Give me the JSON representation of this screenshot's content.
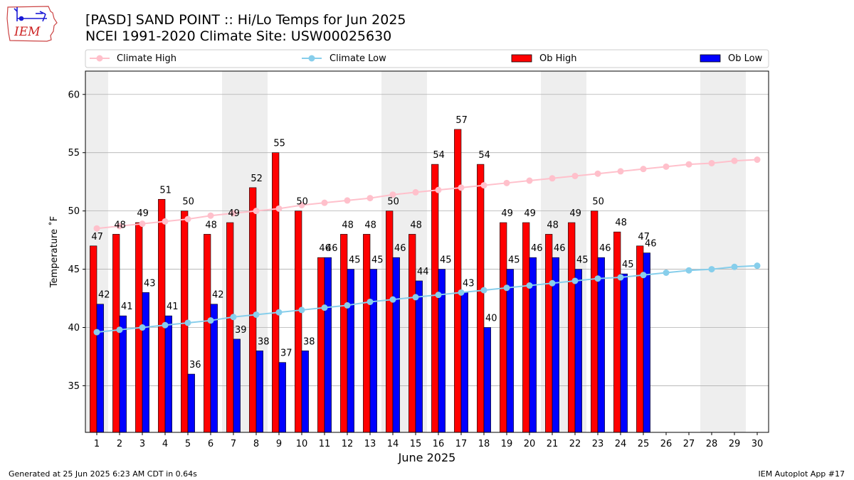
{
  "header": {
    "title_line1": "[PASD] SAND POINT :: Hi/Lo Temps for Jun 2025",
    "title_line2": "NCEI 1991-2020 Climate Site: USW00025630"
  },
  "logo": {
    "text": "IEM",
    "icon": "iowa-state-weather-logo"
  },
  "footer": {
    "generated": "Generated at 25 Jun 2025 6:23 AM CDT in 0.64s",
    "app": "IEM Autoplot App #17"
  },
  "colors": {
    "ob_high": "#ff0000",
    "ob_low": "#0000ff",
    "climate_high": "#ffc0cb",
    "climate_low": "#87ceeb",
    "weekend_band": "#eeeeee",
    "grid": "#b0b0b0"
  },
  "chart_data": {
    "type": "bar",
    "xlabel": "June 2025",
    "ylabel": "Temperature ˚F",
    "ylim": [
      31,
      62
    ],
    "yticks": [
      35,
      40,
      45,
      50,
      55,
      60
    ],
    "grid": "horizontal",
    "legend_placement": "top",
    "categories": [
      "1",
      "2",
      "3",
      "4",
      "5",
      "6",
      "7",
      "8",
      "9",
      "10",
      "11",
      "12",
      "13",
      "14",
      "15",
      "16",
      "17",
      "18",
      "19",
      "20",
      "21",
      "22",
      "23",
      "24",
      "25",
      "26",
      "27",
      "28",
      "29",
      "30"
    ],
    "weekend_days": [
      1,
      7,
      8,
      14,
      15,
      21,
      22,
      28,
      29
    ],
    "series": [
      {
        "name": "Ob High",
        "kind": "bar",
        "values": [
          47,
          48,
          49,
          51,
          50,
          48,
          49,
          52,
          55,
          50,
          46,
          48,
          48,
          50,
          48,
          54,
          57,
          54,
          49,
          49,
          48,
          49,
          50,
          48.2,
          47,
          null,
          null,
          null,
          null,
          null
        ],
        "labels": [
          "47",
          "48",
          "49",
          "51",
          "50",
          "48",
          "49",
          "52",
          "55",
          "50",
          "46",
          "48",
          "48",
          "50",
          "48",
          "54",
          "57",
          "54",
          "49",
          "49",
          "48",
          "49",
          "50",
          "48",
          "47",
          "",
          "",
          "",
          "",
          ""
        ]
      },
      {
        "name": "Ob Low",
        "kind": "bar",
        "values": [
          42,
          41,
          43,
          41,
          36,
          42,
          39,
          38,
          37,
          38,
          46,
          45,
          45,
          46,
          44,
          45,
          43,
          40,
          45,
          46,
          46,
          45,
          46,
          44.6,
          46.4,
          null,
          null,
          null,
          null,
          null
        ],
        "labels": [
          "42",
          "41",
          "43",
          "41",
          "36",
          "42",
          "39",
          "38",
          "37",
          "38",
          "46",
          "45",
          "45",
          "46",
          "44",
          "45",
          "43",
          "40",
          "45",
          "46",
          "46",
          "45",
          "46",
          "45",
          "46",
          "",
          "",
          "",
          "",
          ""
        ]
      },
      {
        "name": "Climate High",
        "kind": "line",
        "values": [
          48.5,
          48.7,
          48.9,
          49.1,
          49.3,
          49.6,
          49.8,
          50.0,
          50.2,
          50.5,
          50.7,
          50.9,
          51.1,
          51.4,
          51.6,
          51.8,
          52.0,
          52.2,
          52.4,
          52.6,
          52.8,
          53.0,
          53.2,
          53.4,
          53.6,
          53.8,
          54.0,
          54.1,
          54.3,
          54.4
        ]
      },
      {
        "name": "Climate Low",
        "kind": "line",
        "values": [
          39.6,
          39.8,
          40.0,
          40.2,
          40.4,
          40.6,
          40.9,
          41.1,
          41.3,
          41.5,
          41.7,
          41.9,
          42.2,
          42.4,
          42.6,
          42.8,
          43.0,
          43.2,
          43.4,
          43.6,
          43.8,
          44.0,
          44.2,
          44.3,
          44.5,
          44.7,
          44.9,
          45.0,
          45.2,
          45.3
        ]
      }
    ]
  }
}
